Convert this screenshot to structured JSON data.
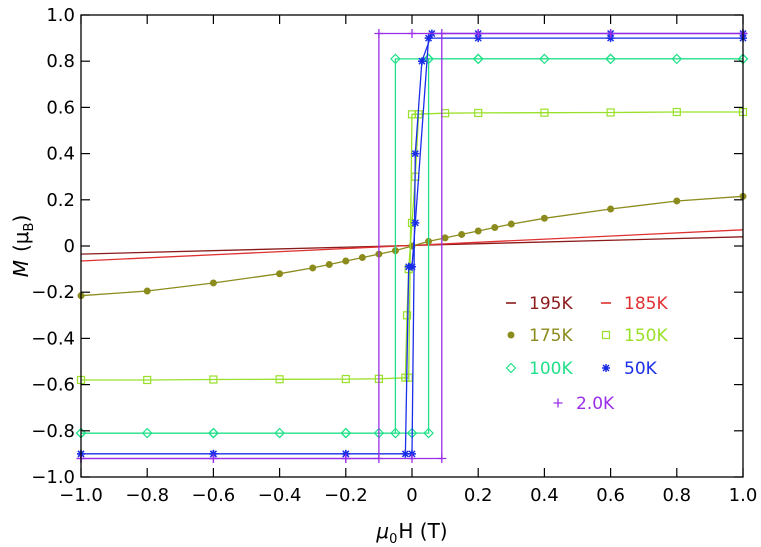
{
  "chart_data": {
    "type": "line",
    "title": "",
    "xlabel": {
      "symbol": "μ",
      "sub": "0",
      "rest": "H  (T)"
    },
    "ylabel": {
      "symbol": "M",
      "rest": "(μ",
      "sub": "B",
      "close": ")"
    },
    "xlim": [
      -1.0,
      1.0
    ],
    "ylim": [
      -1.0,
      1.0
    ],
    "xticks": [
      -1.0,
      -0.8,
      -0.6,
      -0.4,
      -0.2,
      0,
      0.2,
      0.4,
      0.6,
      0.8,
      1.0
    ],
    "yticks": [
      -1.0,
      -0.8,
      -0.6,
      -0.4,
      -0.2,
      0,
      0.2,
      0.4,
      0.6,
      0.8,
      1.0
    ],
    "xtick_labels": [
      "−1.0",
      "−0.8",
      "−0.6",
      "−0.4",
      "−0.2",
      "0",
      "0.2",
      "0.4",
      "0.6",
      "0.8",
      "1.0"
    ],
    "ytick_labels": [
      "−1.0",
      "−0.8",
      "−0.6",
      "−0.4",
      "−0.2",
      "0",
      "0.2",
      "0.4",
      "0.6",
      "0.8",
      "1.0"
    ],
    "grid": false,
    "legend_position": "lower-right",
    "series": [
      {
        "name": "195K",
        "color": "#8b1a1a",
        "marker": "dash",
        "loops": [
          [
            [
              -1.0,
              -0.035
            ],
            [
              1.0,
              0.04
            ]
          ]
        ]
      },
      {
        "name": "185K",
        "color": "#e03030",
        "marker": "dash",
        "loops": [
          [
            [
              -1.0,
              -0.065
            ],
            [
              1.0,
              0.07
            ]
          ]
        ]
      },
      {
        "name": "175K",
        "color": "#8c8c1e",
        "marker": "circle",
        "loops": [
          [
            [
              -1.0,
              -0.215
            ],
            [
              -0.8,
              -0.195
            ],
            [
              -0.6,
              -0.16
            ],
            [
              -0.4,
              -0.12
            ],
            [
              -0.3,
              -0.095
            ],
            [
              -0.25,
              -0.08
            ],
            [
              -0.2,
              -0.065
            ],
            [
              -0.15,
              -0.05
            ],
            [
              -0.1,
              -0.035
            ],
            [
              -0.05,
              -0.02
            ],
            [
              0,
              0
            ],
            [
              0.05,
              0.02
            ],
            [
              0.1,
              0.035
            ],
            [
              0.15,
              0.05
            ],
            [
              0.2,
              0.065
            ],
            [
              0.25,
              0.08
            ],
            [
              0.3,
              0.095
            ],
            [
              0.4,
              0.12
            ],
            [
              0.6,
              0.16
            ],
            [
              0.8,
              0.195
            ],
            [
              1.0,
              0.215
            ]
          ]
        ]
      },
      {
        "name": "150K",
        "color": "#99e02a",
        "marker": "square",
        "loops": [
          [
            [
              -1.0,
              -0.58
            ],
            [
              -0.8,
              -0.58
            ],
            [
              -0.6,
              -0.578
            ],
            [
              -0.4,
              -0.577
            ],
            [
              -0.2,
              -0.576
            ],
            [
              -0.1,
              -0.575
            ],
            [
              -0.01,
              -0.57
            ],
            [
              0.0,
              0.57
            ],
            [
              0.1,
              0.575
            ],
            [
              0.2,
              0.576
            ],
            [
              0.4,
              0.577
            ],
            [
              0.6,
              0.578
            ],
            [
              0.8,
              0.58
            ],
            [
              1.0,
              0.58
            ]
          ],
          [
            [
              -0.02,
              -0.57
            ],
            [
              -0.015,
              -0.3
            ],
            [
              -0.01,
              -0.1
            ],
            [
              0.0,
              0.1
            ],
            [
              0.01,
              0.3
            ],
            [
              0.02,
              0.57
            ]
          ]
        ]
      },
      {
        "name": "100K",
        "color": "#22e08a",
        "marker": "diamond",
        "loops": [
          [
            [
              1.0,
              0.81
            ],
            [
              0.8,
              0.81
            ],
            [
              0.6,
              0.81
            ],
            [
              0.4,
              0.81
            ],
            [
              0.2,
              0.81
            ],
            [
              0.05,
              0.81
            ],
            [
              -0.05,
              0.81
            ],
            [
              -0.05,
              -0.81
            ],
            [
              -0.1,
              -0.81
            ],
            [
              -0.2,
              -0.81
            ],
            [
              -0.4,
              -0.81
            ],
            [
              -0.6,
              -0.81
            ],
            [
              -0.8,
              -0.81
            ],
            [
              -1.0,
              -0.81
            ]
          ],
          [
            [
              -1.0,
              -0.81
            ],
            [
              -0.6,
              -0.81
            ],
            [
              -0.2,
              -0.81
            ],
            [
              0.0,
              -0.81
            ],
            [
              0.05,
              -0.81
            ],
            [
              0.05,
              0.81
            ],
            [
              0.2,
              0.81
            ],
            [
              0.6,
              0.81
            ],
            [
              1.0,
              0.81
            ]
          ]
        ]
      },
      {
        "name": "50K",
        "color": "#1a2ee8",
        "marker": "star",
        "loops": [
          [
            [
              1.0,
              0.9
            ],
            [
              0.6,
              0.9
            ],
            [
              0.2,
              0.9
            ],
            [
              0.05,
              0.9
            ],
            [
              0.01,
              0.1
            ],
            [
              0.0,
              -0.09
            ],
            [
              -0.01,
              -0.09
            ],
            [
              -0.02,
              -0.9
            ],
            [
              -0.2,
              -0.9
            ],
            [
              -0.6,
              -0.9
            ],
            [
              -1.0,
              -0.9
            ]
          ],
          [
            [
              -1.0,
              -0.9
            ],
            [
              -0.6,
              -0.9
            ],
            [
              -0.2,
              -0.9
            ],
            [
              0.0,
              -0.9
            ],
            [
              0.01,
              0.4
            ],
            [
              0.03,
              0.8
            ],
            [
              0.06,
              0.92
            ],
            [
              0.2,
              0.92
            ],
            [
              0.6,
              0.92
            ],
            [
              1.0,
              0.92
            ]
          ]
        ]
      },
      {
        "name": "2.0K",
        "color": "#9a2ee8",
        "marker": "plus",
        "loops": [
          [
            [
              1.0,
              0.92
            ],
            [
              0.6,
              0.92
            ],
            [
              0.2,
              0.92
            ],
            [
              0.0,
              0.92
            ],
            [
              -0.1,
              0.92
            ],
            [
              -0.1,
              -0.92
            ],
            [
              -0.2,
              -0.92
            ],
            [
              -0.6,
              -0.92
            ],
            [
              -1.0,
              -0.92
            ]
          ],
          [
            [
              -1.0,
              -0.92
            ],
            [
              -0.6,
              -0.92
            ],
            [
              -0.2,
              -0.92
            ],
            [
              0.0,
              -0.92
            ],
            [
              0.09,
              -0.92
            ],
            [
              0.09,
              0.92
            ],
            [
              0.2,
              0.92
            ],
            [
              0.6,
              0.92
            ],
            [
              1.0,
              0.92
            ]
          ]
        ]
      }
    ]
  }
}
